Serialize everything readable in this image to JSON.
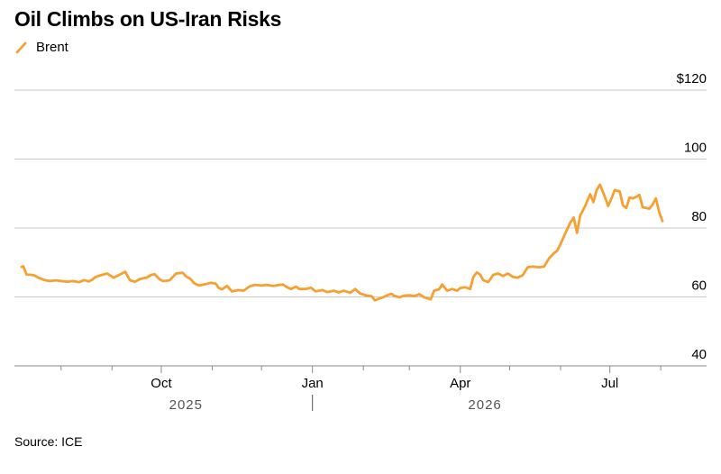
{
  "title": "Oil Climbs on US-Iran Risks",
  "source": "Source: ICE",
  "colors": {
    "series": "#f5a030",
    "grid": "#c8c8c8",
    "axis": "#888888",
    "text": "#000000",
    "muted": "#555555"
  },
  "chart_data": {
    "type": "line",
    "title": "Oil Climbs on US-Iran Risks",
    "xlabel": "",
    "ylabel": "",
    "ylim": [
      40,
      120
    ],
    "xlim": [
      "2025-07-08",
      "2026-08-02"
    ],
    "y_ticks": [
      40,
      60,
      80,
      100,
      120
    ],
    "y_tick_labels": [
      "40",
      "60",
      "80",
      "100",
      "$120"
    ],
    "x_ticks": [
      {
        "date": "2025-10-01",
        "label": "Oct"
      },
      {
        "date": "2026-01-01",
        "label": "Jan"
      },
      {
        "date": "2026-04-01",
        "label": "Apr"
      },
      {
        "date": "2026-07-01",
        "label": "Jul"
      }
    ],
    "minor_ticks": [
      "2025-08-01",
      "2025-09-01",
      "2025-11-01",
      "2025-12-01",
      "2026-02-01",
      "2026-03-01",
      "2026-05-01",
      "2026-06-01",
      "2026-08-01"
    ],
    "year_labels": [
      {
        "label": "2025",
        "date": "2025-10-16"
      },
      {
        "label": "2026",
        "date": "2026-04-16"
      }
    ],
    "year_divider": "2026-01-01",
    "grid": true,
    "legend": "top-left",
    "series": [
      {
        "name": "Brent",
        "color": "#f5a030",
        "points": [
          [
            "2025-07-08",
            68.7
          ],
          [
            "2025-07-09",
            68.9
          ],
          [
            "2025-07-11",
            66.5
          ],
          [
            "2025-07-14",
            66.4
          ],
          [
            "2025-07-16",
            66.2
          ],
          [
            "2025-07-18",
            65.6
          ],
          [
            "2025-07-22",
            64.9
          ],
          [
            "2025-07-25",
            64.6
          ],
          [
            "2025-07-29",
            64.8
          ],
          [
            "2025-08-01",
            64.6
          ],
          [
            "2025-08-05",
            64.4
          ],
          [
            "2025-08-08",
            64.6
          ],
          [
            "2025-08-12",
            64.3
          ],
          [
            "2025-08-15",
            64.9
          ],
          [
            "2025-08-18",
            64.5
          ],
          [
            "2025-08-20",
            65.0
          ],
          [
            "2025-08-22",
            65.8
          ],
          [
            "2025-08-26",
            66.4
          ],
          [
            "2025-08-29",
            66.8
          ],
          [
            "2025-09-02",
            65.6
          ],
          [
            "2025-09-05",
            66.3
          ],
          [
            "2025-09-09",
            67.3
          ],
          [
            "2025-09-12",
            64.8
          ],
          [
            "2025-09-15",
            64.4
          ],
          [
            "2025-09-18",
            65.2
          ],
          [
            "2025-09-22",
            65.6
          ],
          [
            "2025-09-25",
            66.4
          ],
          [
            "2025-09-27",
            66.6
          ],
          [
            "2025-09-30",
            65.1
          ],
          [
            "2025-10-02",
            64.6
          ],
          [
            "2025-10-06",
            64.8
          ],
          [
            "2025-10-08",
            65.8
          ],
          [
            "2025-10-10",
            66.8
          ],
          [
            "2025-10-14",
            67.0
          ],
          [
            "2025-10-16",
            66.0
          ],
          [
            "2025-10-19",
            65.1
          ],
          [
            "2025-10-21",
            64.0
          ],
          [
            "2025-10-24",
            63.3
          ],
          [
            "2025-10-28",
            63.7
          ],
          [
            "2025-10-31",
            64.1
          ],
          [
            "2025-11-03",
            63.9
          ],
          [
            "2025-11-05",
            62.6
          ],
          [
            "2025-11-07",
            62.2
          ],
          [
            "2025-11-10",
            63.2
          ],
          [
            "2025-11-13",
            61.6
          ],
          [
            "2025-11-17",
            62.0
          ],
          [
            "2025-11-20",
            61.8
          ],
          [
            "2025-11-24",
            63.1
          ],
          [
            "2025-11-27",
            63.5
          ],
          [
            "2025-12-01",
            63.3
          ],
          [
            "2025-12-04",
            63.5
          ],
          [
            "2025-12-08",
            63.2
          ],
          [
            "2025-12-11",
            63.4
          ],
          [
            "2025-12-14",
            63.6
          ],
          [
            "2025-12-17",
            62.7
          ],
          [
            "2025-12-19",
            62.3
          ],
          [
            "2025-12-22",
            63.0
          ],
          [
            "2025-12-24",
            62.3
          ],
          [
            "2025-12-28",
            62.3
          ],
          [
            "2025-12-31",
            62.7
          ],
          [
            "2026-01-03",
            61.6
          ],
          [
            "2026-01-07",
            62.0
          ],
          [
            "2026-01-10",
            61.4
          ],
          [
            "2026-01-14",
            61.8
          ],
          [
            "2026-01-17",
            61.3
          ],
          [
            "2026-01-20",
            61.8
          ],
          [
            "2026-01-24",
            61.2
          ],
          [
            "2026-01-27",
            62.3
          ],
          [
            "2026-01-30",
            61.0
          ],
          [
            "2026-02-03",
            60.4
          ],
          [
            "2026-02-06",
            60.2
          ],
          [
            "2026-02-08",
            59.0
          ],
          [
            "2026-02-10",
            59.4
          ],
          [
            "2026-02-13",
            59.9
          ],
          [
            "2026-02-16",
            60.6
          ],
          [
            "2026-02-18",
            60.9
          ],
          [
            "2026-02-20",
            60.3
          ],
          [
            "2026-02-23",
            59.9
          ],
          [
            "2026-02-26",
            60.4
          ],
          [
            "2026-03-01",
            60.5
          ],
          [
            "2026-03-04",
            60.2
          ],
          [
            "2026-03-07",
            60.8
          ],
          [
            "2026-03-10",
            59.9
          ],
          [
            "2026-03-14",
            59.3
          ],
          [
            "2026-03-16",
            61.8
          ],
          [
            "2026-03-19",
            62.2
          ],
          [
            "2026-03-21",
            63.6
          ],
          [
            "2026-03-24",
            61.8
          ],
          [
            "2026-03-27",
            62.3
          ],
          [
            "2026-03-30",
            61.8
          ],
          [
            "2026-04-01",
            62.6
          ],
          [
            "2026-04-04",
            62.8
          ],
          [
            "2026-04-07",
            62.3
          ],
          [
            "2026-04-09",
            65.8
          ],
          [
            "2026-04-11",
            67.1
          ],
          [
            "2026-04-13",
            66.5
          ],
          [
            "2026-04-15",
            64.8
          ],
          [
            "2026-04-18",
            64.3
          ],
          [
            "2026-04-21",
            66.4
          ],
          [
            "2026-04-24",
            66.8
          ],
          [
            "2026-04-27",
            66.1
          ],
          [
            "2026-04-30",
            66.8
          ],
          [
            "2026-05-03",
            65.8
          ],
          [
            "2026-05-06",
            65.6
          ],
          [
            "2026-05-09",
            66.3
          ],
          [
            "2026-05-12",
            68.6
          ],
          [
            "2026-05-15",
            68.8
          ],
          [
            "2026-05-19",
            68.6
          ],
          [
            "2026-05-22",
            68.8
          ],
          [
            "2026-05-25",
            71.2
          ],
          [
            "2026-05-28",
            72.7
          ],
          [
            "2026-05-30",
            73.4
          ],
          [
            "2026-06-02",
            76.4
          ],
          [
            "2026-06-04",
            78.6
          ],
          [
            "2026-06-07",
            81.6
          ],
          [
            "2026-06-09",
            83.0
          ],
          [
            "2026-06-11",
            78.6
          ],
          [
            "2026-06-13",
            83.6
          ],
          [
            "2026-06-16",
            86.4
          ],
          [
            "2026-06-19",
            89.8
          ],
          [
            "2026-06-21",
            87.5
          ],
          [
            "2026-06-23",
            91.0
          ],
          [
            "2026-06-25",
            92.6
          ],
          [
            "2026-06-28",
            89.0
          ],
          [
            "2026-06-30",
            86.4
          ],
          [
            "2026-07-02",
            88.6
          ],
          [
            "2026-07-04",
            91.0
          ],
          [
            "2026-07-07",
            90.6
          ],
          [
            "2026-07-09",
            86.6
          ],
          [
            "2026-07-11",
            85.8
          ],
          [
            "2026-07-13",
            88.8
          ],
          [
            "2026-07-15",
            88.6
          ],
          [
            "2026-07-17",
            89.0
          ],
          [
            "2026-07-19",
            89.6
          ],
          [
            "2026-07-21",
            86.0
          ],
          [
            "2026-07-23",
            85.8
          ],
          [
            "2026-07-25",
            85.6
          ],
          [
            "2026-07-27",
            86.8
          ],
          [
            "2026-07-29",
            88.6
          ],
          [
            "2026-07-31",
            84.6
          ],
          [
            "2026-08-02",
            82.0
          ]
        ]
      }
    ]
  }
}
